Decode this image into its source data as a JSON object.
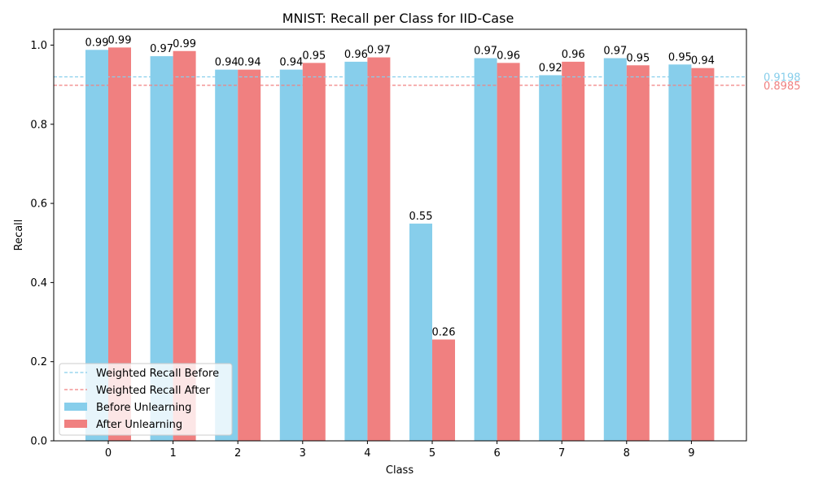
{
  "chart_data": {
    "type": "bar",
    "title": "MNIST: Recall per Class for IID-Case",
    "xlabel": "Class",
    "ylabel": "Recall",
    "ylim": [
      0.0,
      1.04
    ],
    "yticks": [
      0.0,
      0.2,
      0.4,
      0.6,
      0.8,
      1.0
    ],
    "ytick_labels": [
      "0.0",
      "0.2",
      "0.4",
      "0.6",
      "0.8",
      "1.0"
    ],
    "categories": [
      "0",
      "1",
      "2",
      "3",
      "4",
      "5",
      "6",
      "7",
      "8",
      "9"
    ],
    "series": [
      {
        "name": "Before Unlearning",
        "color": "#87CEEB",
        "values": [
          0.988,
          0.972,
          0.938,
          0.938,
          0.958,
          0.549,
          0.967,
          0.924,
          0.967,
          0.951
        ],
        "labels": [
          "0.99",
          "0.97",
          "0.94",
          "0.94",
          "0.96",
          "0.55",
          "0.97",
          "0.92",
          "0.97",
          "0.95"
        ]
      },
      {
        "name": "After Unlearning",
        "color": "#F08080",
        "values": [
          0.994,
          0.985,
          0.938,
          0.955,
          0.969,
          0.256,
          0.955,
          0.958,
          0.949,
          0.942
        ],
        "labels": [
          "0.99",
          "0.99",
          "0.94",
          "0.95",
          "0.97",
          "0.26",
          "0.96",
          "0.96",
          "0.95",
          "0.94"
        ]
      }
    ],
    "reference_lines": [
      {
        "name": "Weighted Recall Before",
        "value": 0.9198,
        "label": "0.9198",
        "color": "#87CEEB",
        "style": "dashed"
      },
      {
        "name": "Weighted Recall After",
        "value": 0.8985,
        "label": "0.8985",
        "color": "#F08080",
        "style": "dashed"
      }
    ],
    "legend": {
      "placement": "lower-left",
      "entries": [
        "Weighted Recall Before",
        "Weighted Recall After",
        "Before Unlearning",
        "After Unlearning"
      ]
    }
  }
}
